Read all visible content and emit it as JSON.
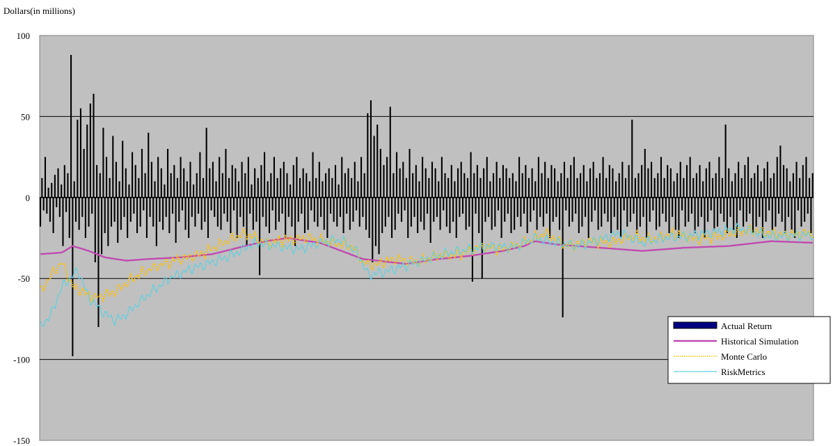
{
  "chart_data": {
    "type": "bar+line",
    "ylabel": "Dollars (in millions)",
    "ylim": [
      -150,
      100
    ],
    "yticks": [
      100,
      50,
      0,
      -50,
      -100,
      -150
    ],
    "grid": "horizontal at 50, 0, -50, -100",
    "legend_placement": "lower-right",
    "n_points": 480,
    "background": "#c0c0c0",
    "series": [
      {
        "name": "Actual Return",
        "kind": "bar",
        "color": "#000080",
        "values": [
          -18,
          12,
          -8,
          25,
          -10,
          6,
          -15,
          9,
          -22,
          14,
          -6,
          18,
          -12,
          8,
          -30,
          20,
          -9,
          15,
          -25,
          88,
          -98,
          10,
          -15,
          48,
          -20,
          55,
          -12,
          30,
          -25,
          45,
          -18,
          58,
          -10,
          64,
          -40,
          20,
          -80,
          15,
          -35,
          43,
          -22,
          25,
          -30,
          12,
          -18,
          38,
          -15,
          22,
          -28,
          10,
          -20,
          35,
          -12,
          18,
          -25,
          8,
          -15,
          28,
          -10,
          20,
          -22,
          12,
          -18,
          30,
          -8,
          15,
          -25,
          40,
          -12,
          22,
          -18,
          10,
          -30,
          25,
          -15,
          18,
          -20,
          8,
          -12,
          30,
          -22,
          15,
          -10,
          20,
          -28,
          12,
          -15,
          25,
          -8,
          18,
          -20,
          10,
          -25,
          22,
          -12,
          8,
          -18,
          15,
          -10,
          28,
          -20,
          12,
          -15,
          43,
          -25,
          18,
          -8,
          22,
          -12,
          10,
          -18,
          25,
          -20,
          15,
          -10,
          30,
          -15,
          12,
          -22,
          20,
          -8,
          18,
          -25,
          10,
          -12,
          22,
          -18,
          15,
          -30,
          25,
          -10,
          8,
          -20,
          18,
          -15,
          12,
          -48,
          20,
          -12,
          28,
          -18,
          10,
          -22,
          15,
          -8,
          25,
          -20,
          12,
          -15,
          18,
          -10,
          22,
          -25,
          15,
          -12,
          8,
          -18,
          20,
          -30,
          25,
          -15,
          12,
          -10,
          18,
          -22,
          15,
          -20,
          10,
          -8,
          28,
          -15,
          12,
          -18,
          22,
          -12,
          10,
          -20,
          15,
          -25,
          18,
          -10,
          12,
          -15,
          20,
          -18,
          8,
          -12,
          25,
          -22,
          15,
          -10,
          18,
          -20,
          12,
          -15,
          22,
          -8,
          10,
          -18,
          25,
          -12,
          15,
          -20,
          52,
          -25,
          60,
          -40,
          38,
          -30,
          45,
          -35,
          30,
          -22,
          20,
          -18,
          25,
          -12,
          56,
          -25,
          15,
          -20,
          28,
          -10,
          18,
          -15,
          22,
          -8,
          12,
          -25,
          30,
          -18,
          15,
          -12,
          20,
          -22,
          10,
          -15,
          25,
          -20,
          18,
          -10,
          12,
          -28,
          22,
          -15,
          18,
          -12,
          10,
          -20,
          25,
          -8,
          15,
          -18,
          12,
          -22,
          20,
          -15,
          10,
          -25,
          18,
          -12,
          22,
          -10,
          15,
          -20,
          12,
          -18,
          28,
          -52,
          15,
          -10,
          20,
          -22,
          12,
          -50,
          18,
          -15,
          25,
          -12,
          10,
          -20,
          15,
          -18,
          22,
          -8,
          12,
          -25,
          20,
          -15,
          18,
          -10,
          12,
          -22,
          15,
          -20,
          10,
          -12,
          25,
          -18,
          15,
          -10,
          20,
          -22,
          12,
          -15,
          18,
          -8,
          10,
          -20,
          25,
          -12,
          15,
          -18,
          22,
          -10,
          12,
          -25,
          20,
          -15,
          18,
          -12,
          10,
          -20,
          15,
          -74,
          22,
          -8,
          12,
          -18,
          20,
          -15,
          25,
          -10,
          12,
          -22,
          15,
          -18,
          20,
          -12,
          10,
          -25,
          18,
          -15,
          22,
          -8,
          12,
          -20,
          15,
          -18,
          25,
          -10,
          12,
          -15,
          20,
          -22,
          18,
          -12,
          10,
          -20,
          15,
          -25,
          22,
          -8,
          12,
          -18,
          20,
          -15,
          48,
          -10,
          12,
          -22,
          15,
          -18,
          20,
          -12,
          30,
          -25,
          18,
          -15,
          22,
          -8,
          12,
          -20,
          15,
          -18,
          25,
          -10,
          12,
          -15,
          20,
          -22,
          18,
          -12,
          10,
          -20,
          15,
          -25,
          22,
          -8,
          12,
          -18,
          20,
          -15,
          25,
          -10,
          12,
          -22,
          15,
          -18,
          20,
          -12,
          10,
          -25,
          18,
          -15,
          22,
          -8,
          12,
          -20,
          15,
          -18,
          25,
          -10,
          12,
          -15,
          45,
          -22,
          18,
          -12,
          10,
          -20,
          15,
          -25,
          22,
          -8,
          12,
          -18,
          20,
          -15,
          25,
          -10,
          12,
          -22,
          15,
          -18,
          20,
          -12,
          10,
          -25,
          18,
          -15,
          22,
          -8,
          12,
          -20,
          15,
          -18,
          25,
          -10,
          32,
          -15,
          20,
          -22,
          18,
          -12,
          10,
          -20,
          15,
          -25,
          22,
          -8,
          12,
          -18,
          20,
          -15,
          25,
          -10,
          12,
          -22,
          15,
          -18,
          20,
          -12,
          10,
          -25,
          18,
          -15,
          22,
          -8,
          12,
          -20,
          15,
          -18,
          25,
          -10,
          12,
          -15,
          20,
          -22,
          31
        ]
      },
      {
        "name": "Historical Simulation",
        "kind": "line",
        "color": "#c04ab0",
        "keypoints": [
          [
            0,
            -35
          ],
          [
            20,
            -34
          ],
          [
            30,
            -30
          ],
          [
            45,
            -33
          ],
          [
            60,
            -37
          ],
          [
            80,
            -39
          ],
          [
            100,
            -38
          ],
          [
            130,
            -37
          ],
          [
            160,
            -35
          ],
          [
            190,
            -30
          ],
          [
            210,
            -27
          ],
          [
            230,
            -25
          ],
          [
            260,
            -28
          ],
          [
            280,
            -33
          ],
          [
            300,
            -38
          ],
          [
            340,
            -41
          ],
          [
            370,
            -38
          ],
          [
            400,
            -36
          ],
          [
            430,
            -33
          ],
          [
            450,
            -30
          ],
          [
            460,
            -27
          ],
          [
            480,
            -29
          ],
          [
            520,
            -31
          ],
          [
            560,
            -33
          ],
          [
            600,
            -31
          ],
          [
            640,
            -30
          ],
          [
            680,
            -27
          ],
          [
            720,
            -28
          ]
        ]
      },
      {
        "name": "Monte Carlo",
        "kind": "line",
        "color": "#ffc000",
        "keypoints": [
          [
            0,
            -58
          ],
          [
            10,
            -48
          ],
          [
            20,
            -40
          ],
          [
            30,
            -55
          ],
          [
            50,
            -62
          ],
          [
            70,
            -58
          ],
          [
            90,
            -48
          ],
          [
            110,
            -42
          ],
          [
            130,
            -38
          ],
          [
            150,
            -35
          ],
          [
            170,
            -28
          ],
          [
            190,
            -22
          ],
          [
            210,
            -28
          ],
          [
            230,
            -26
          ],
          [
            250,
            -25
          ],
          [
            270,
            -28
          ],
          [
            290,
            -30
          ],
          [
            300,
            -40
          ],
          [
            310,
            -42
          ],
          [
            330,
            -38
          ],
          [
            350,
            -40
          ],
          [
            370,
            -36
          ],
          [
            390,
            -35
          ],
          [
            410,
            -30
          ],
          [
            430,
            -32
          ],
          [
            450,
            -28
          ],
          [
            470,
            -22
          ],
          [
            490,
            -30
          ],
          [
            510,
            -27
          ],
          [
            530,
            -28
          ],
          [
            550,
            -24
          ],
          [
            570,
            -26
          ],
          [
            590,
            -22
          ],
          [
            610,
            -26
          ],
          [
            630,
            -24
          ],
          [
            660,
            -20
          ],
          [
            690,
            -23
          ],
          [
            720,
            -22
          ]
        ]
      },
      {
        "name": "RiskMetrics",
        "kind": "line",
        "color": "#60d0e0",
        "keypoints": [
          [
            0,
            -80
          ],
          [
            10,
            -72
          ],
          [
            20,
            -55
          ],
          [
            35,
            -45
          ],
          [
            45,
            -62
          ],
          [
            60,
            -72
          ],
          [
            70,
            -76
          ],
          [
            80,
            -72
          ],
          [
            100,
            -60
          ],
          [
            120,
            -50
          ],
          [
            140,
            -44
          ],
          [
            160,
            -40
          ],
          [
            180,
            -35
          ],
          [
            200,
            -28
          ],
          [
            220,
            -30
          ],
          [
            240,
            -32
          ],
          [
            260,
            -28
          ],
          [
            280,
            -26
          ],
          [
            295,
            -34
          ],
          [
            305,
            -48
          ],
          [
            320,
            -46
          ],
          [
            340,
            -42
          ],
          [
            360,
            -38
          ],
          [
            380,
            -34
          ],
          [
            400,
            -32
          ],
          [
            420,
            -30
          ],
          [
            440,
            -31
          ],
          [
            460,
            -25
          ],
          [
            480,
            -28
          ],
          [
            500,
            -30
          ],
          [
            520,
            -26
          ],
          [
            540,
            -22
          ],
          [
            560,
            -28
          ],
          [
            580,
            -25
          ],
          [
            600,
            -24
          ],
          [
            620,
            -22
          ],
          [
            650,
            -19
          ],
          [
            680,
            -24
          ],
          [
            720,
            -23
          ]
        ]
      }
    ],
    "legend": [
      "Actual Return",
      "Historical Simulation",
      "Monte Carlo",
      "RiskMetrics"
    ]
  },
  "labels": {
    "ylabel_text": "Dollars(in millions)"
  }
}
